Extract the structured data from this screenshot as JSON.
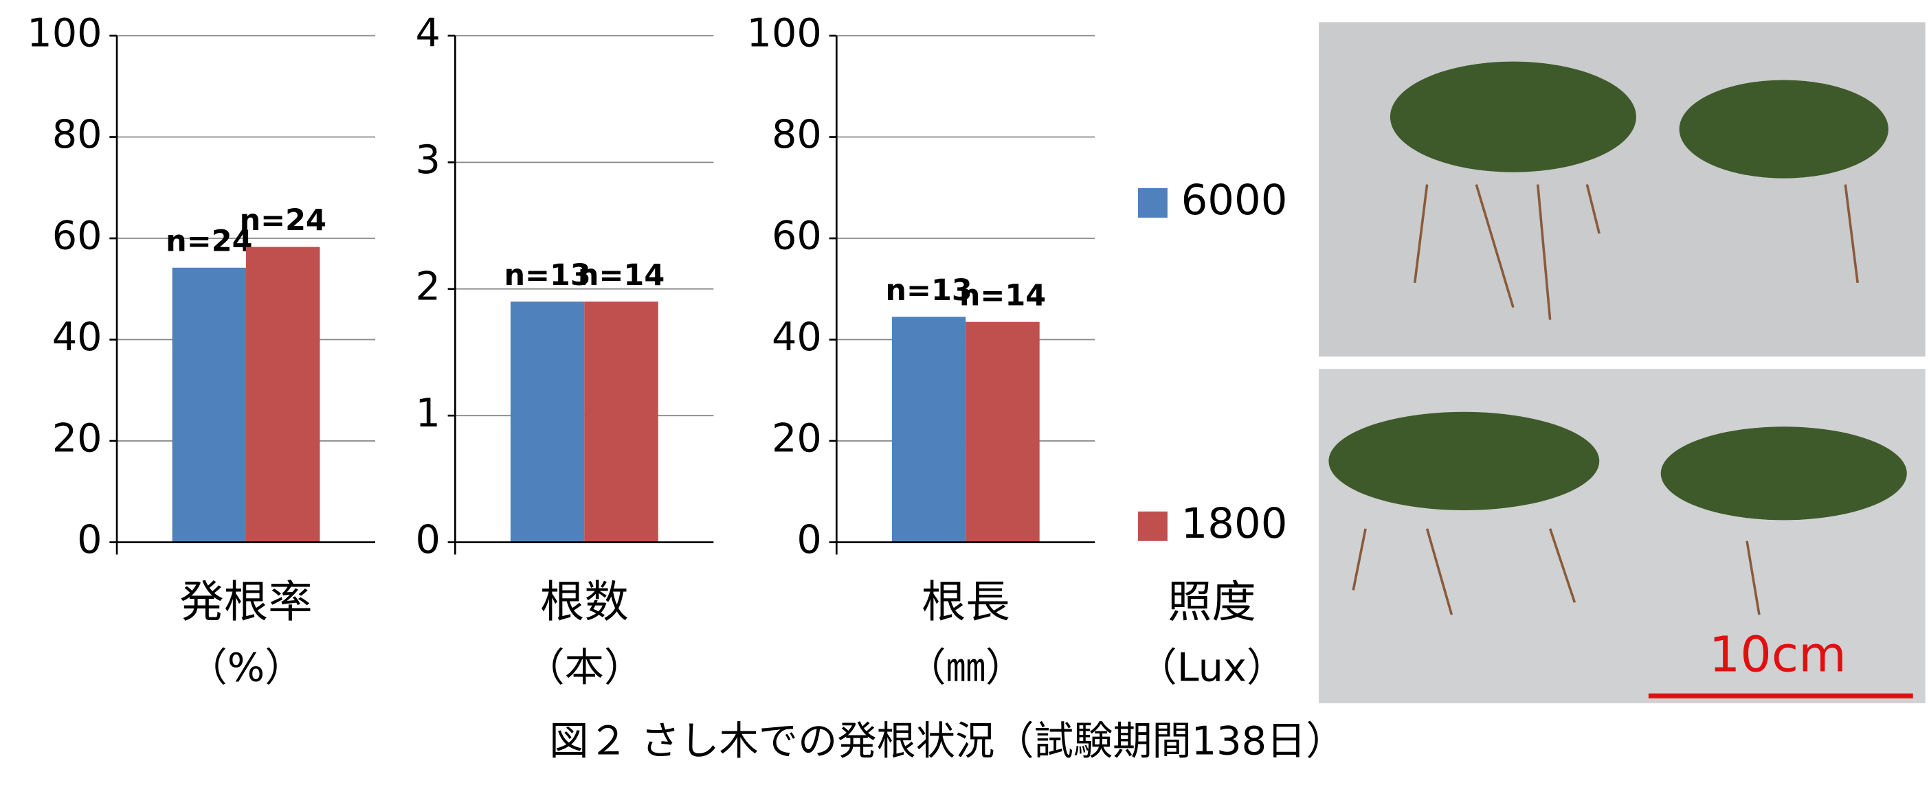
{
  "chart_data": [
    {
      "type": "bar",
      "x_label": "発根率",
      "x_unit": "（%）",
      "ylim": [
        0,
        100
      ],
      "yticks": [
        0,
        20,
        40,
        60,
        80,
        100
      ],
      "grid": true,
      "series": [
        {
          "name": "6000",
          "color": "#4f81bd",
          "values": [
            54.2
          ]
        },
        {
          "name": "1800",
          "color": "#c0504d",
          "values": [
            58.3
          ]
        }
      ],
      "annotations": [
        "n=24",
        "n=24"
      ]
    },
    {
      "type": "bar",
      "x_label": "根数",
      "x_unit": "（本）",
      "ylim": [
        0,
        4
      ],
      "yticks": [
        0,
        1,
        2,
        3,
        4
      ],
      "grid": true,
      "series": [
        {
          "color": "#4f81bd",
          "values": [
            1.9
          ]
        },
        {
          "color": "#c0504d",
          "values": [
            1.9
          ]
        }
      ],
      "annotations": [
        "n=13",
        "n=14"
      ]
    },
    {
      "type": "bar",
      "x_label": "根長",
      "x_unit": "（㎜）",
      "ylim": [
        0,
        100
      ],
      "yticks": [
        0,
        20,
        40,
        60,
        80,
        100
      ],
      "grid": true,
      "series": [
        {
          "color": "#4f81bd",
          "values": [
            44.5
          ]
        },
        {
          "color": "#c0504d",
          "values": [
            43.5
          ]
        }
      ],
      "annotations": [
        "n=13",
        "n=14"
      ]
    }
  ],
  "legend": {
    "title": "照度",
    "unit": "（Lux）"
  },
  "photo": {
    "scale_label": "10cm"
  },
  "caption": "図２ さし木での発根状況（試験期間138日）"
}
